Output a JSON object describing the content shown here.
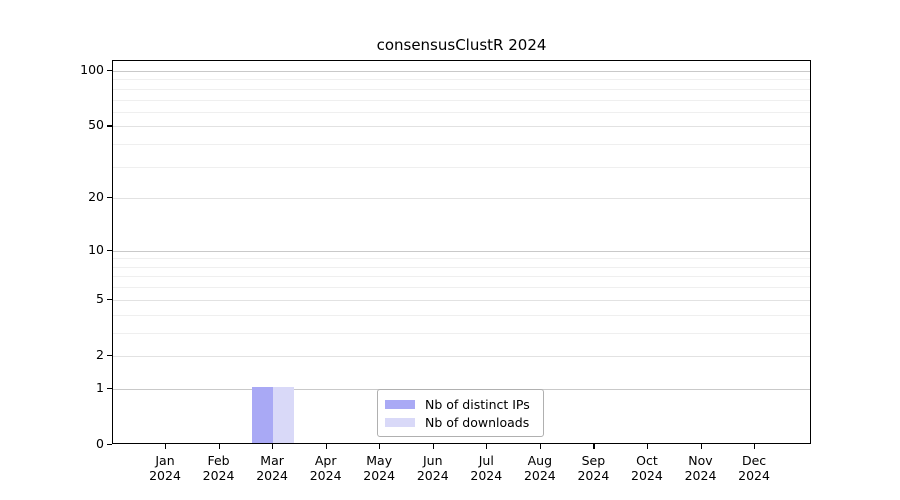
{
  "title": "consensusClustR 2024",
  "colors": {
    "distinct_ips": "#a9a9f5",
    "downloads": "#d9d9f8",
    "grid_decade": "#c9c9c9",
    "grid_major": "#e2e2e2",
    "grid_minor": "#efefef",
    "axis": "#000000",
    "background": "#ffffff"
  },
  "legend": {
    "items": [
      {
        "swatch": "distinct-ips-swatch",
        "label": "Nb of distinct IPs"
      },
      {
        "swatch": "downloads-swatch",
        "label": "Nb of downloads"
      }
    ]
  },
  "chart_data": {
    "type": "bar",
    "title": "consensusClustR 2024",
    "categories": [
      "Jan 2024",
      "Feb 2024",
      "Mar 2024",
      "Apr 2024",
      "May 2024",
      "Jun 2024",
      "Jul 2024",
      "Aug 2024",
      "Sep 2024",
      "Oct 2024",
      "Nov 2024",
      "Dec 2024"
    ],
    "series": [
      {
        "name": "Nb of distinct IPs",
        "color": "#a9a9f5",
        "values": [
          0,
          0,
          1,
          0,
          0,
          0,
          0,
          0,
          0,
          0,
          0,
          0
        ]
      },
      {
        "name": "Nb of downloads",
        "color": "#d9d9f8",
        "values": [
          0,
          0,
          1,
          0,
          0,
          0,
          0,
          0,
          0,
          0,
          0,
          0
        ]
      }
    ],
    "xlabel": "",
    "ylabel": "",
    "yscale": "log1p",
    "ylim": [
      0,
      113
    ],
    "y_major_ticks": [
      0,
      1,
      2,
      5,
      10,
      20,
      50,
      100
    ],
    "y_decade_ticks": [
      1,
      10,
      100
    ],
    "y_minor_ticks": [
      3,
      4,
      6,
      7,
      8,
      9,
      30,
      40,
      60,
      70,
      80,
      90
    ],
    "grid": "horizontal",
    "legend_position": "lower center"
  }
}
